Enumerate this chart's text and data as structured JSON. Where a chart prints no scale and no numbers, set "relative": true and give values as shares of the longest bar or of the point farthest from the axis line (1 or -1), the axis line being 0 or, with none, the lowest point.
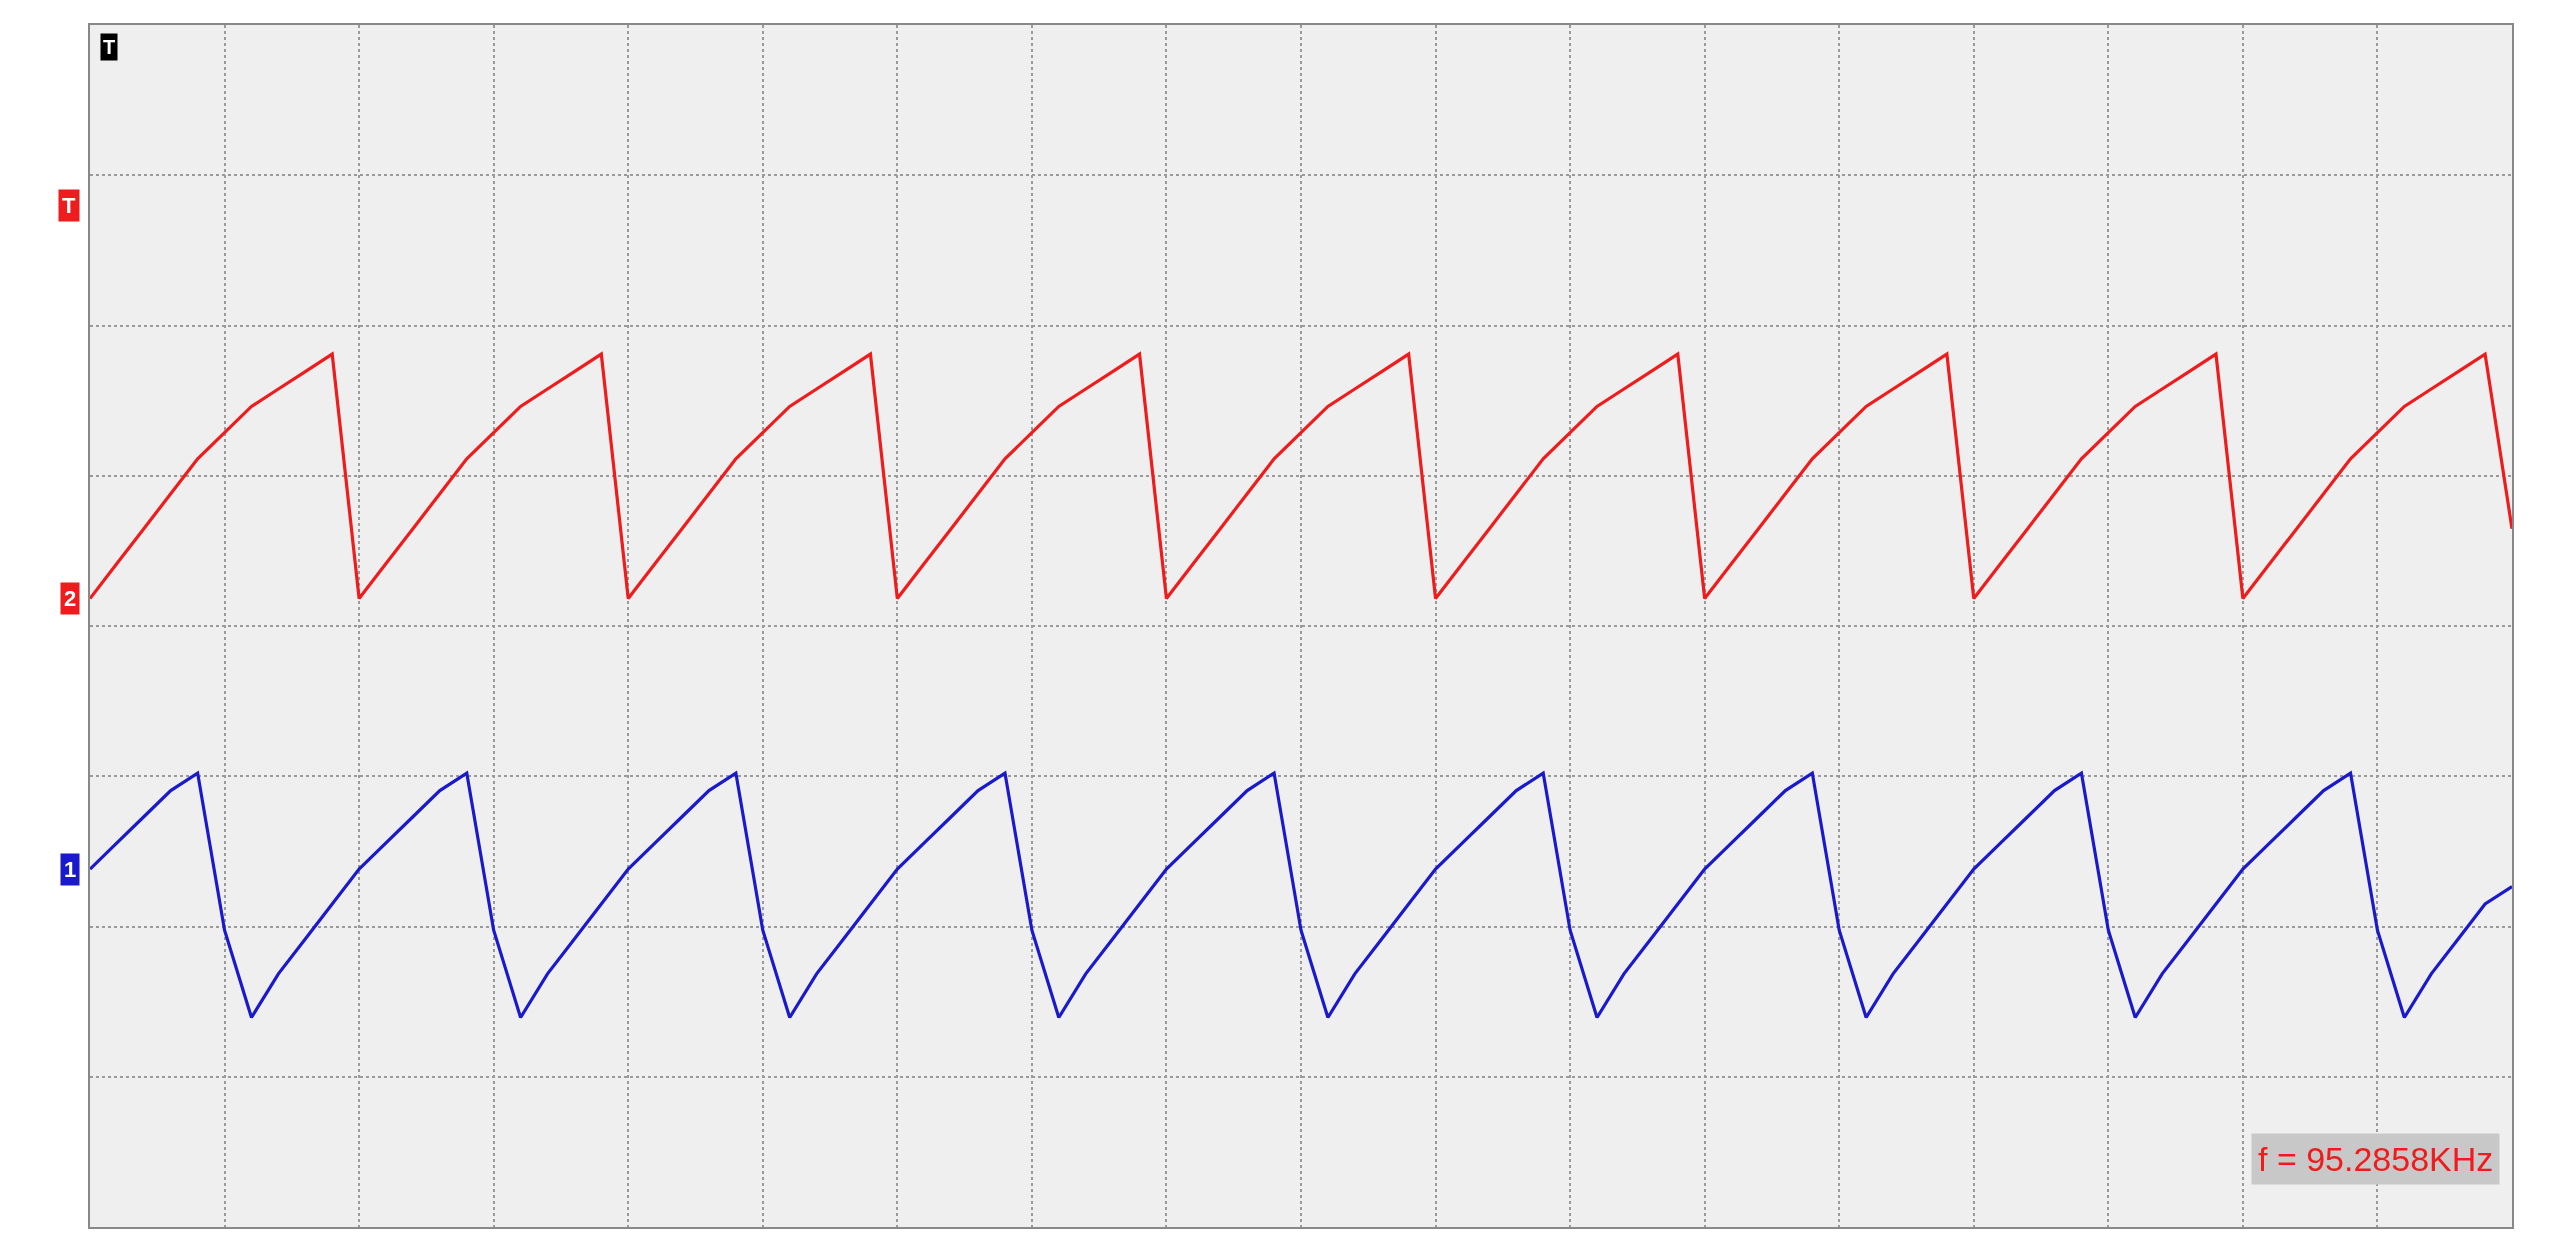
{
  "chart_data": {
    "type": "line",
    "relative": true,
    "grid": true,
    "legend": false,
    "marker": "none",
    "line_style": "solid",
    "categories": [
      null,
      null,
      null,
      null,
      null,
      null,
      null,
      null,
      null,
      null,
      null,
      null,
      null,
      null,
      null,
      null,
      null,
      null,
      null,
      null,
      null,
      null,
      null,
      null,
      null,
      null,
      null,
      null,
      null,
      null,
      null,
      null,
      null,
      null,
      null,
      null,
      null,
      null,
      null,
      null,
      null,
      null,
      null,
      null,
      null,
      null,
      null,
      null,
      null,
      null,
      null,
      null,
      null,
      null,
      null,
      null,
      null,
      null,
      null,
      null,
      null,
      null,
      null,
      null,
      null,
      null,
      null,
      null,
      null,
      null,
      null,
      null,
      null,
      null,
      null,
      null,
      null,
      null,
      null,
      null,
      null,
      null,
      null,
      null,
      null,
      null,
      null,
      null,
      null,
      null,
      null
    ],
    "series": [
      {
        "name": "2",
        "color": "#ee1c1c",
        "values": [
          0.72,
          0.76,
          0.8,
          0.84,
          0.88,
          0.91,
          0.94,
          0.96,
          0.98,
          1.0,
          0.72,
          0.76,
          0.8,
          0.84,
          0.88,
          0.91,
          0.94,
          0.96,
          0.98,
          1.0,
          0.72,
          0.76,
          0.8,
          0.84,
          0.88,
          0.91,
          0.94,
          0.96,
          0.98,
          1.0,
          0.72,
          0.76,
          0.8,
          0.84,
          0.88,
          0.91,
          0.94,
          0.96,
          0.98,
          1.0,
          0.72,
          0.76,
          0.8,
          0.84,
          0.88,
          0.91,
          0.94,
          0.96,
          0.98,
          1.0,
          0.72,
          0.76,
          0.8,
          0.84,
          0.88,
          0.91,
          0.94,
          0.96,
          0.98,
          1.0,
          0.72,
          0.76,
          0.8,
          0.84,
          0.88,
          0.91,
          0.94,
          0.96,
          0.98,
          1.0,
          0.72,
          0.76,
          0.8,
          0.84,
          0.88,
          0.91,
          0.94,
          0.96,
          0.98,
          1.0,
          0.72,
          0.76,
          0.8,
          0.84,
          0.88,
          0.91,
          0.94,
          0.96,
          0.98,
          1.0,
          0.8
        ]
      },
      {
        "name": "1",
        "color": "#1a1acc",
        "values": [
          0.41,
          0.44,
          0.47,
          0.5,
          0.52,
          0.34,
          0.24,
          0.29,
          0.33,
          0.37,
          0.41,
          0.44,
          0.47,
          0.5,
          0.52,
          0.34,
          0.24,
          0.29,
          0.33,
          0.37,
          0.41,
          0.44,
          0.47,
          0.5,
          0.52,
          0.34,
          0.24,
          0.29,
          0.33,
          0.37,
          0.41,
          0.44,
          0.47,
          0.5,
          0.52,
          0.34,
          0.24,
          0.29,
          0.33,
          0.37,
          0.41,
          0.44,
          0.47,
          0.5,
          0.52,
          0.34,
          0.24,
          0.29,
          0.33,
          0.37,
          0.41,
          0.44,
          0.47,
          0.5,
          0.52,
          0.34,
          0.24,
          0.29,
          0.33,
          0.37,
          0.41,
          0.44,
          0.47,
          0.5,
          0.52,
          0.34,
          0.24,
          0.29,
          0.33,
          0.37,
          0.41,
          0.44,
          0.47,
          0.5,
          0.52,
          0.34,
          0.24,
          0.29,
          0.33,
          0.37,
          0.41,
          0.44,
          0.47,
          0.5,
          0.52,
          0.34,
          0.24,
          0.29,
          0.33,
          0.37,
          0.39
        ]
      }
    ],
    "annotations": [
      "T",
      "f = 95.2858KHz",
      "T"
    ]
  }
}
